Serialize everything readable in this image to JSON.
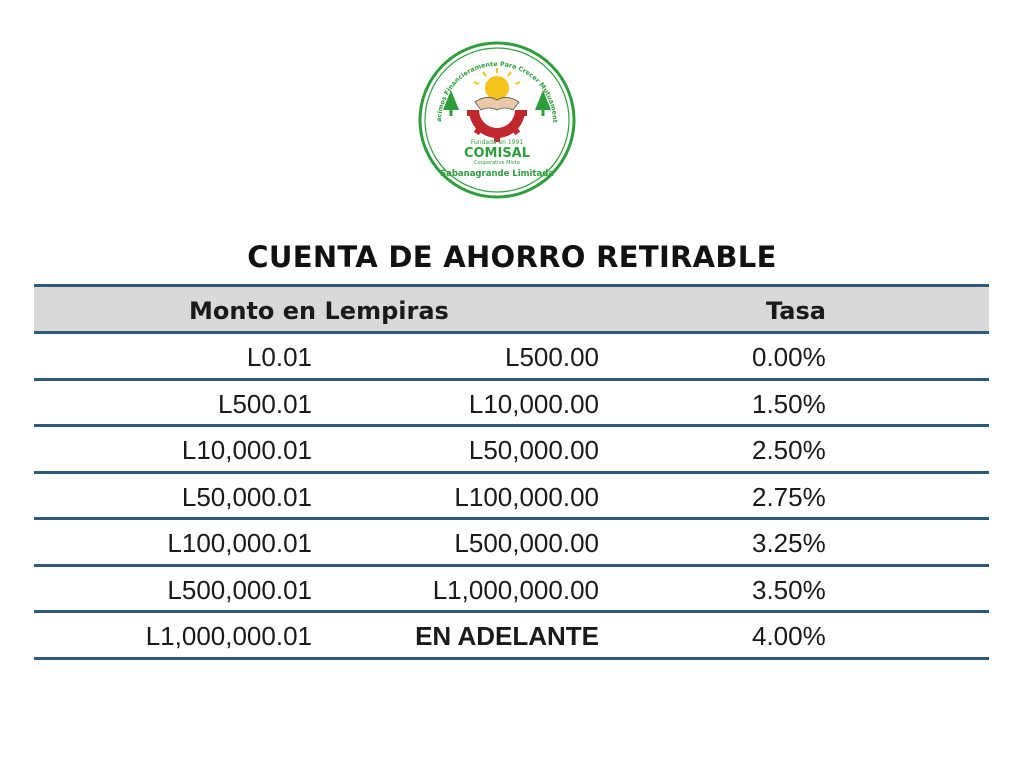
{
  "logo": {
    "arc_text": "Nacimos Financieramente Para Crecer Mutuamente",
    "founded": "Fundada en 1991",
    "name": "COMISAL",
    "subtitle": "Cooperative Mixta",
    "bottom_text": "Sabanagrande Limitada"
  },
  "title": "CUENTA DE AHORRO RETIRABLE",
  "table": {
    "headers": {
      "monto": "Monto en Lempiras",
      "tasa": "Tasa"
    },
    "rows": [
      {
        "from": "L0.01",
        "to": "L500.00",
        "rate": "0.00%"
      },
      {
        "from": "L500.01",
        "to": "L10,000.00",
        "rate": "1.50%"
      },
      {
        "from": "L10,000.01",
        "to": "L50,000.00",
        "rate": "2.50%"
      },
      {
        "from": "L50,000.01",
        "to": "L100,000.00",
        "rate": "2.75%"
      },
      {
        "from": "L100,000.01",
        "to": "L500,000.00",
        "rate": "3.25%"
      },
      {
        "from": "L500,000.01",
        "to": "L1,000,000.00",
        "rate": "3.50%"
      },
      {
        "from": "L1,000,000.01",
        "to": "EN ADELANTE",
        "rate": "4.00%"
      }
    ]
  },
  "colors": {
    "rule": "#2d5a78",
    "header_bg": "#d9d9d9",
    "logo_green": "#2e9e3c",
    "logo_red": "#c0282d",
    "logo_sun": "#f6c21c"
  }
}
